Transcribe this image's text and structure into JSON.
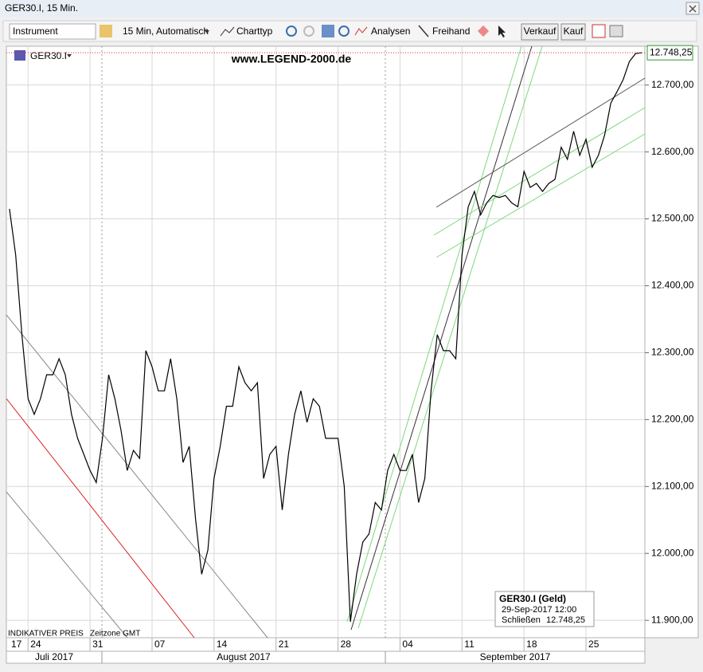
{
  "window": {
    "title": "GER30.I, 15 Min."
  },
  "toolbar": {
    "instrument": "Instrument",
    "interval": "15 Min,  Automatisch",
    "chart_type": "Charttyp",
    "analyses": "Analysen",
    "freehand": "Freihand",
    "sell": "Verkauf",
    "buy": "Kauf"
  },
  "chart_data": {
    "type": "line",
    "watermark": "www.LEGEND-2000.de",
    "series": [
      {
        "name": "GER30.I",
        "color": "#000000",
        "values": [
          12515,
          12446,
          12327,
          12231,
          12208,
          12231,
          12267,
          12267,
          12291,
          12267,
          12208,
          12172,
          12148,
          12124,
          12106,
          12172,
          12267,
          12231,
          12184,
          12124,
          12154,
          12142,
          12303,
          12279,
          12243,
          12243,
          12291,
          12231,
          12136,
          12160,
          12053,
          11969,
          12005,
          12112,
          12160,
          12220,
          12220,
          12279,
          12255,
          12243,
          12255,
          12112,
          12148,
          12160,
          12065,
          12148,
          12208,
          12243,
          12196,
          12231,
          12220,
          12172,
          12172,
          12172,
          12100,
          11898,
          11969,
          12017,
          12029,
          12076,
          12065,
          12124,
          12148,
          12124,
          12124,
          12148,
          12076,
          12112,
          12243,
          12327,
          12303,
          12303,
          12291,
          12446,
          12518,
          12541,
          12506,
          12524,
          12535,
          12532,
          12535,
          12524,
          12518,
          12571,
          12547,
          12553,
          12541,
          12553,
          12559,
          12607,
          12589,
          12631,
          12595,
          12619,
          12577,
          12595,
          12625,
          12673,
          12690,
          12708,
          12735,
          12747,
          12748.25
        ]
      }
    ],
    "xlim": [
      -0.5,
      102.5
    ],
    "xticks": [
      {
        "value": -7,
        "label": "17"
      },
      {
        "value": 3,
        "label": "24"
      },
      {
        "value": 13,
        "label": "31"
      },
      {
        "value": 23,
        "label": "07"
      },
      {
        "value": 33,
        "label": "14"
      },
      {
        "value": 43,
        "label": "21"
      },
      {
        "value": 53,
        "label": "28"
      },
      {
        "value": 63,
        "label": "04"
      },
      {
        "value": 73,
        "label": "11"
      },
      {
        "value": 83,
        "label": "18"
      },
      {
        "value": 93,
        "label": "25"
      }
    ],
    "months": [
      "Juli 2017",
      "August 2017",
      "September 2017"
    ],
    "ylim": [
      11874,
      12758
    ],
    "yticks": [
      {
        "value": 11900,
        "label": "11.900,00"
      },
      {
        "value": 12000,
        "label": "12.000,00"
      },
      {
        "value": 12100,
        "label": "12.100,00"
      },
      {
        "value": 12200,
        "label": "12.200,00"
      },
      {
        "value": 12300,
        "label": "12.300,00"
      },
      {
        "value": 12400,
        "label": "12.400,00"
      },
      {
        "value": 12500,
        "label": "12.500,00"
      },
      {
        "value": 12600,
        "label": "12.600,00"
      },
      {
        "value": 12700,
        "label": "12.700,00"
      }
    ],
    "grid": true,
    "last_price": {
      "value": 12748.25,
      "label": "12.748,25"
    },
    "info_box": {
      "title": "GER30.I (Geld)",
      "date": "29-Sep-2017 12:00",
      "field": "Schließen",
      "value": "12.748,25"
    },
    "footer": [
      "INDIKATIVER PREIS",
      "Zeitzone GMT"
    ]
  }
}
